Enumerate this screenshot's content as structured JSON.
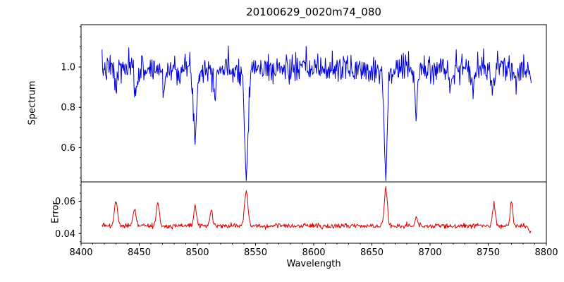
{
  "title": "20100629_0020m74_080",
  "axes": {
    "xlabel": "Wavelength",
    "spectrum_ylabel": "Spectrum",
    "error_ylabel": "Error",
    "x_ticks": [
      {
        "value": 8400,
        "label": "8400"
      },
      {
        "value": 8450,
        "label": "8450"
      },
      {
        "value": 8500,
        "label": "8500"
      },
      {
        "value": 8550,
        "label": "8550"
      },
      {
        "value": 8600,
        "label": "8600"
      },
      {
        "value": 8650,
        "label": "8650"
      },
      {
        "value": 8700,
        "label": "8700"
      },
      {
        "value": 8750,
        "label": "8750"
      },
      {
        "value": 8800,
        "label": "8800"
      }
    ]
  },
  "chart_data": {
    "type": "line",
    "title": "20100629_0020m74_080",
    "xlabel": "Wavelength",
    "xlim": [
      8400,
      8800
    ],
    "x_start": 8418,
    "x_end": 8787,
    "x_step": 0.5,
    "x_minor_step": 10,
    "grid": false,
    "legend": "none",
    "series": [
      {
        "name": "spectrum",
        "ylabel": "Spectrum",
        "color": "#0000dd",
        "ylim": [
          0.43,
          1.21
        ],
        "yticks": [
          {
            "value": 0.6,
            "label": "0.6"
          },
          {
            "value": 0.8,
            "label": "0.8"
          },
          {
            "value": 1.0,
            "label": "1.0"
          }
        ],
        "y_minor_step": 0.05,
        "baseline": 0.99,
        "noise_sigma": 0.035,
        "seed": 7,
        "features": [
          {
            "center": 8430,
            "amp": -0.1,
            "width": 1.0
          },
          {
            "center": 8447,
            "amp": -0.13,
            "width": 1.1
          },
          {
            "center": 8471,
            "amp": -0.1,
            "width": 1.0
          },
          {
            "center": 8498,
            "amp": -0.36,
            "width": 1.3
          },
          {
            "center": 8515,
            "amp": -0.1,
            "width": 1.0
          },
          {
            "center": 8542,
            "amp": -0.52,
            "width": 1.5
          },
          {
            "center": 8662,
            "amp": -0.5,
            "width": 1.4
          },
          {
            "center": 8688,
            "amp": -0.22,
            "width": 1.2
          },
          {
            "center": 8718,
            "amp": -0.1,
            "width": 1.0
          },
          {
            "center": 8737,
            "amp": -0.12,
            "width": 1.0
          },
          {
            "center": 8754,
            "amp": -0.11,
            "width": 1.0
          }
        ]
      },
      {
        "name": "error",
        "ylabel": "Error",
        "color": "#dd0000",
        "ylim": [
          0.034,
          0.072
        ],
        "yticks": [
          {
            "value": 0.04,
            "label": "0.04"
          },
          {
            "value": 0.06,
            "label": "0.06"
          }
        ],
        "y_minor_step": 0.005,
        "baseline": 0.0447,
        "noise_sigma": 0.0008,
        "seed": 99,
        "features": [
          {
            "center": 8430,
            "amp": 0.0155,
            "width": 1.4
          },
          {
            "center": 8446,
            "amp": 0.011,
            "width": 1.2
          },
          {
            "center": 8466,
            "amp": 0.0145,
            "width": 1.3
          },
          {
            "center": 8498,
            "amp": 0.0125,
            "width": 1.2
          },
          {
            "center": 8512,
            "amp": 0.0095,
            "width": 1.1
          },
          {
            "center": 8542,
            "amp": 0.021,
            "width": 1.5
          },
          {
            "center": 8662,
            "amp": 0.0235,
            "width": 1.3
          },
          {
            "center": 8688,
            "amp": 0.005,
            "width": 1.1
          },
          {
            "center": 8755,
            "amp": 0.0135,
            "width": 1.2
          },
          {
            "center": 8770,
            "amp": 0.015,
            "width": 1.1
          },
          {
            "center": 8786,
            "amp": -0.0035,
            "width": 1.5
          }
        ]
      }
    ]
  }
}
